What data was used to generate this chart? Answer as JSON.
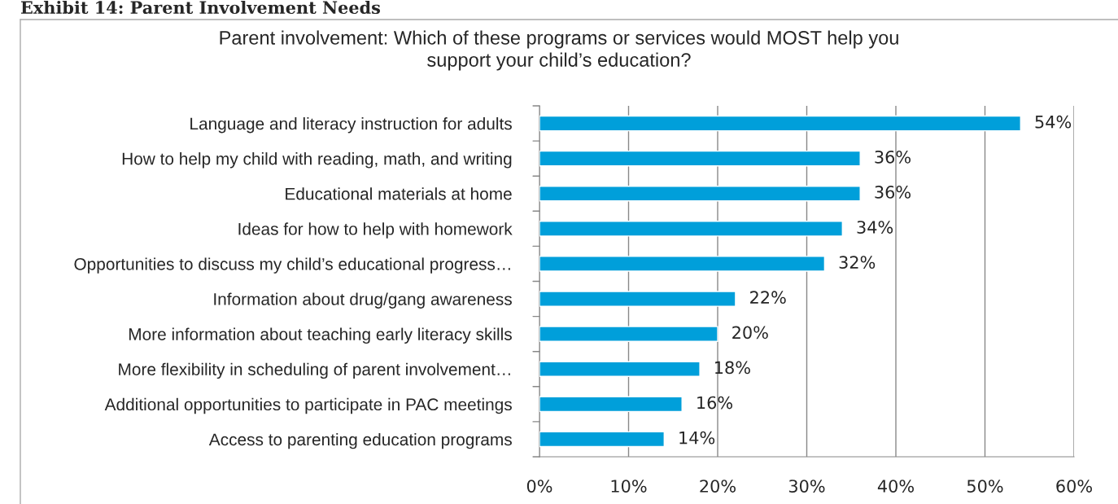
{
  "chart_data": {
    "type": "bar",
    "orientation": "horizontal",
    "title": "Parent involvement: Which of these programs or services would MOST help you\nsupport your child’s education?",
    "annotations": [
      "Exhibit 14: Parent Involvement Needs"
    ],
    "categories": [
      "Language and literacy instruction for adults",
      "How to help my child with reading, math, and writing",
      "Educational materials at home",
      "Ideas for how to help with homework",
      "Opportunities to discuss my child’s educational progress…",
      "Information about drug/gang awareness",
      "More information about teaching early literacy skills",
      "More flexibility in scheduling of parent involvement…",
      "Additional opportunities to participate in PAC meetings",
      "Access to parenting education programs"
    ],
    "values": [
      54,
      36,
      36,
      34,
      32,
      22,
      20,
      18,
      16,
      14
    ],
    "value_labels": [
      "54%",
      "36%",
      "36%",
      "34%",
      "32%",
      "22%",
      "20%",
      "18%",
      "16%",
      "14%"
    ],
    "color": "#009fda",
    "xlim": [
      0,
      60
    ],
    "xticks": [
      {
        "value": 0,
        "label": "0%"
      },
      {
        "value": 10,
        "label": "10%"
      },
      {
        "value": 20,
        "label": "20%"
      },
      {
        "value": 30,
        "label": "30%"
      },
      {
        "value": 40,
        "label": "40%"
      },
      {
        "value": 50,
        "label": "50%"
      },
      {
        "value": 60,
        "label": "60%"
      }
    ],
    "grid": "x",
    "legend": false
  }
}
